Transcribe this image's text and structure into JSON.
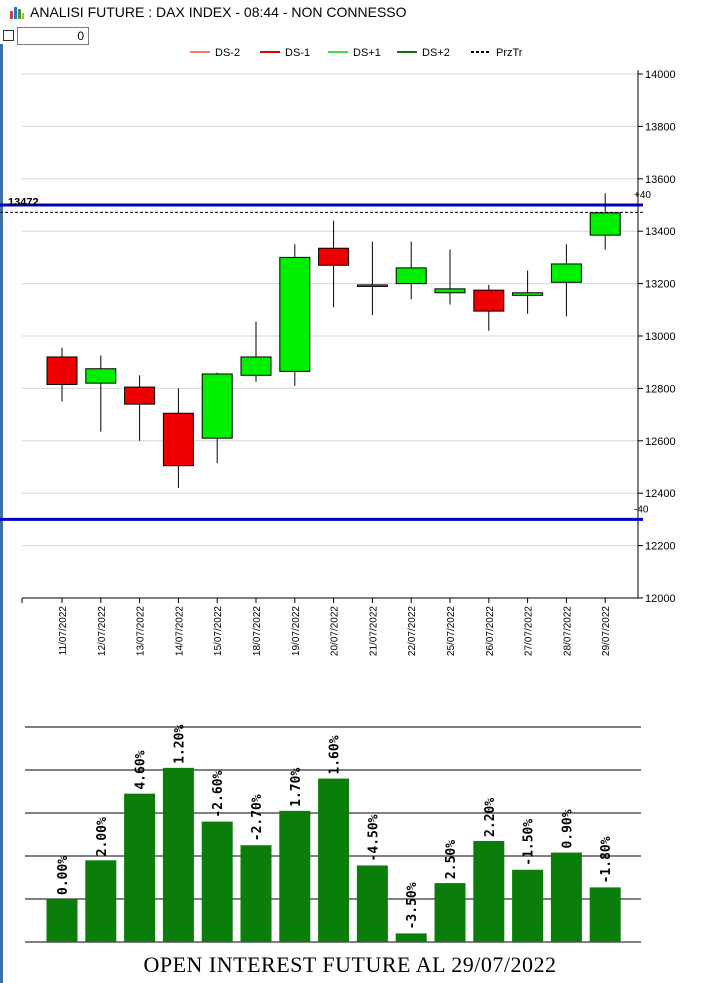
{
  "window": {
    "title": "ANALISI FUTURE : DAX INDEX - 08:44 - NON CONNESSO",
    "icon": "bar-chart-icon"
  },
  "controls": {
    "checkbox_checked": false,
    "spin_value": "0"
  },
  "colors": {
    "up": "#00ee00",
    "down": "#ee0000",
    "level": "#0000c0",
    "oi_bar": "#0a7d0a",
    "ds_minus_2": "#f08060",
    "ds_minus_1": "#e00000",
    "ds_plus_1": "#40e040",
    "ds_plus_2": "#107010",
    "prztr": "#000000"
  },
  "chart_data": [
    {
      "type": "candlestick",
      "legend": [
        {
          "name": "DS-2",
          "color": "#f08060",
          "dash": false
        },
        {
          "name": "DS-1",
          "color": "#e00000",
          "dash": false
        },
        {
          "name": "DS+1",
          "color": "#40e040",
          "dash": false
        },
        {
          "name": "DS+2",
          "color": "#107010",
          "dash": false
        },
        {
          "name": "PrzTr",
          "color": "#000000",
          "dash": true
        }
      ],
      "legend_position": "top-center",
      "ylim": [
        12000,
        14000
      ],
      "yticks": [
        "14000",
        "13800",
        "13600",
        "13400",
        "13200",
        "13000",
        "12800",
        "12600",
        "12400",
        "12200",
        "12000"
      ],
      "grid": true,
      "dates": [
        "11/07/2022",
        "12/07/2022",
        "13/07/2022",
        "14/07/2022",
        "15/07/2022",
        "18/07/2022",
        "19/07/2022",
        "20/07/2022",
        "21/07/2022",
        "22/07/2022",
        "25/07/2022",
        "26/07/2022",
        "27/07/2022",
        "28/07/2022",
        "29/07/2022"
      ],
      "candles": [
        {
          "open": 12920,
          "high": 12955,
          "low": 12750,
          "close": 12815
        },
        {
          "open": 12820,
          "high": 12925,
          "low": 12635,
          "close": 12875
        },
        {
          "open": 12805,
          "high": 12850,
          "low": 12600,
          "close": 12740
        },
        {
          "open": 12705,
          "high": 12800,
          "low": 12420,
          "close": 12505
        },
        {
          "open": 12610,
          "high": 12860,
          "low": 12515,
          "close": 12855
        },
        {
          "open": 12850,
          "high": 13055,
          "low": 12825,
          "close": 12920
        },
        {
          "open": 12865,
          "high": 13350,
          "low": 12810,
          "close": 13300
        },
        {
          "open": 13335,
          "high": 13440,
          "low": 13110,
          "close": 13270
        },
        {
          "open": 13195,
          "high": 13360,
          "low": 13080,
          "close": 13195
        },
        {
          "open": 13200,
          "high": 13360,
          "low": 13140,
          "close": 13260
        },
        {
          "open": 13165,
          "high": 13330,
          "low": 13120,
          "close": 13180
        },
        {
          "open": 13175,
          "high": 13195,
          "low": 13020,
          "close": 13095
        },
        {
          "open": 13155,
          "high": 13250,
          "low": 13085,
          "close": 13165
        },
        {
          "open": 13205,
          "high": 13350,
          "low": 13075,
          "close": 13275
        },
        {
          "open": 13385,
          "high": 13545,
          "low": 13330,
          "close": 13470
        }
      ],
      "levels": [
        {
          "value": 13500,
          "label": "+40"
        },
        {
          "value": 12300,
          "label": "-40"
        }
      ],
      "reference": {
        "value": 13472,
        "label": "13472"
      }
    },
    {
      "type": "bar",
      "title": "OPEN INTEREST FUTURE AL 29/07/2022",
      "labels": [
        "0.00%",
        "2.00%",
        "4.60%",
        "1.20%",
        "-2.60%",
        "-2.70%",
        "1.70%",
        "1.60%",
        "-4.50%",
        "-3.50%",
        "2.50%",
        "2.20%",
        "-1.50%",
        "0.90%",
        "-1.80%"
      ],
      "heights": [
        1.0,
        1.9,
        3.45,
        4.05,
        2.8,
        2.25,
        3.05,
        3.8,
        1.78,
        0.2,
        1.37,
        2.35,
        1.68,
        2.08,
        1.27
      ],
      "ylim": [
        0,
        5
      ],
      "grid": true
    }
  ]
}
